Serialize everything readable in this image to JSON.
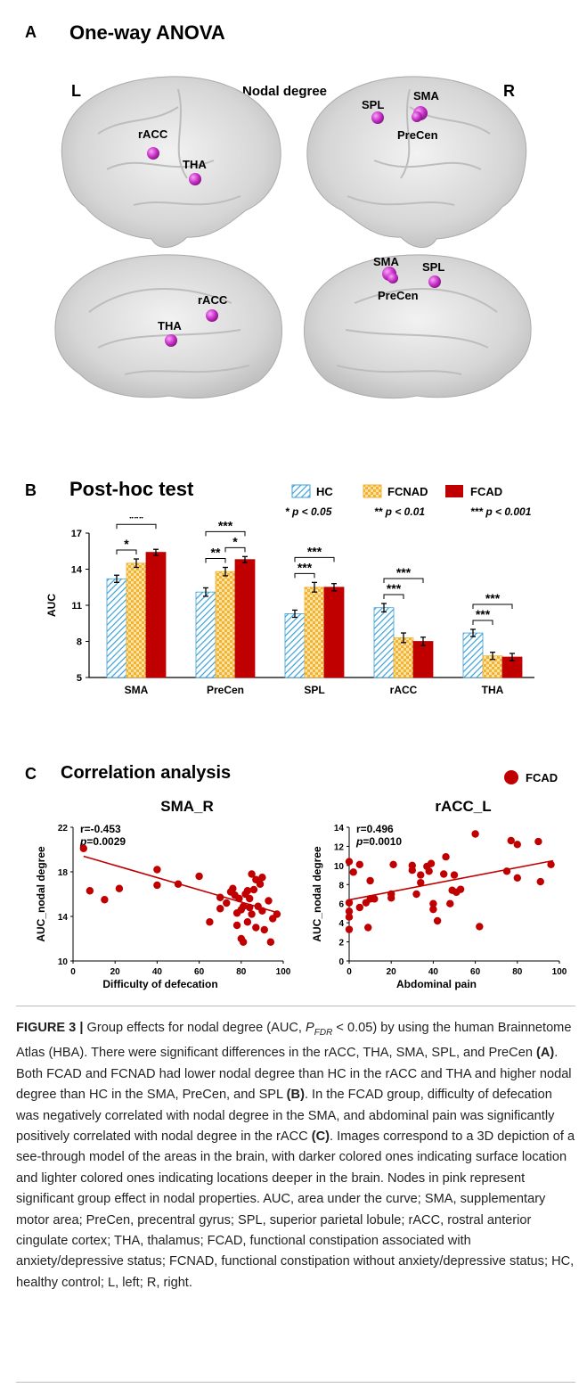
{
  "panelA": {
    "letter": "A",
    "title": "One-way ANOVA",
    "left_label": "L",
    "right_label": "R",
    "center_label": "Nodal degree",
    "brains": [
      {
        "view": "left-lateral",
        "nodes": [
          "rACC",
          "THA"
        ]
      },
      {
        "view": "right-lateral",
        "nodes": [
          "SPL",
          "SMA",
          "PreCen"
        ]
      },
      {
        "view": "left-medial",
        "nodes": [
          "rACC",
          "THA"
        ]
      },
      {
        "view": "right-medial",
        "nodes": [
          "SMA",
          "SPL",
          "PreCen"
        ]
      }
    ],
    "node_color": "#cc33cc"
  },
  "panelB": {
    "letter": "B",
    "title": "Post-hoc test",
    "legend": {
      "hc": "HC",
      "fcnad": "FCNAD",
      "fcad": "FCAD",
      "sig1": "* p < 0.05",
      "sig2": "** p < 0.01",
      "sig3": "*** p < 0.001"
    },
    "colors": {
      "hc": "#3aa0d8",
      "fcnad": "#f3b22f",
      "fcad": "#c00000"
    }
  },
  "panelC": {
    "letter": "C",
    "title": "Correlation analysis",
    "legend_label": "FCAD",
    "legend_color": "#c00000"
  },
  "caption": {
    "figure_label": "FIGURE 3 |",
    "text_1": " Group effects for nodal degree (AUC, ",
    "p_main": "P",
    "p_sub": "FDR",
    "text_2": " < 0.05) by using the human Brainnetome Atlas (HBA). There were significant differences in the rACC, THA, SMA, SPL, and PreCen ",
    "ref_a": "(A)",
    "text_3": ". Both FCAD and FCNAD had lower nodal degree than HC in the rACC and THA and higher nodal degree than HC in the SMA, PreCen, and SPL ",
    "ref_b": "(B)",
    "text_4": ". In the FCAD group, difficulty of defecation was negatively correlated with nodal degree in the SMA, and abdominal pain was significantly positively correlated with nodal degree in the rACC ",
    "ref_c": "(C)",
    "text_5": ". Images correspond to a 3D depiction of a see-through model of the areas in the brain, with darker colored ones indicating surface location and lighter colored ones indicating locations deeper in the brain. Nodes in pink represent significant group effect in nodal properties. AUC, area under the curve; SMA, supplementary motor area; PreCen, precentral gyrus; SPL, superior parietal lobule; rACC, rostral anterior cingulate cortex; THA, thalamus; FCAD, functional constipation associated with anxiety/depressive status; FCNAD, functional constipation without anxiety/depressive status; HC, healthy control; L, left; R, right."
  },
  "chart_data": [
    {
      "type": "bar",
      "ylabel": "AUC",
      "ylim": [
        5,
        17
      ],
      "yticks": [
        5,
        8,
        11,
        14,
        17
      ],
      "categories": [
        "SMA",
        "PreCen",
        "SPL",
        "rACC",
        "THA"
      ],
      "series": [
        {
          "name": "HC",
          "values": [
            13.2,
            12.1,
            10.3,
            10.8,
            8.7
          ],
          "errors": [
            0.3,
            0.35,
            0.3,
            0.35,
            0.3
          ]
        },
        {
          "name": "FCNAD",
          "values": [
            14.5,
            13.8,
            12.5,
            8.3,
            6.8
          ],
          "errors": [
            0.35,
            0.35,
            0.4,
            0.4,
            0.3
          ]
        },
        {
          "name": "FCAD",
          "values": [
            15.4,
            14.8,
            12.5,
            8.0,
            6.7
          ],
          "errors": [
            0.25,
            0.25,
            0.3,
            0.35,
            0.3
          ]
        }
      ],
      "significance": [
        {
          "category": "SMA",
          "pairs": [
            [
              "HC",
              "FCNAD",
              "*"
            ],
            [
              "HC",
              "FCAD",
              "***"
            ]
          ]
        },
        {
          "category": "PreCen",
          "pairs": [
            [
              "HC",
              "FCNAD",
              "**"
            ],
            [
              "FCNAD",
              "FCAD",
              "*"
            ],
            [
              "HC",
              "FCAD",
              "***"
            ]
          ]
        },
        {
          "category": "SPL",
          "pairs": [
            [
              "HC",
              "FCNAD",
              "***"
            ],
            [
              "HC",
              "FCAD",
              "***"
            ]
          ]
        },
        {
          "category": "rACC",
          "pairs": [
            [
              "HC",
              "FCNAD",
              "***"
            ],
            [
              "HC",
              "FCAD",
              "***"
            ]
          ]
        },
        {
          "category": "THA",
          "pairs": [
            [
              "HC",
              "FCNAD",
              "***"
            ],
            [
              "HC",
              "FCAD",
              "***"
            ]
          ]
        }
      ]
    },
    {
      "type": "scatter",
      "title": "SMA_R",
      "xlabel": "Difficulty of defecation",
      "ylabel": "AUC_nodal degree",
      "xlim": [
        0,
        100
      ],
      "ylim": [
        10,
        22
      ],
      "xticks": [
        0,
        20,
        40,
        60,
        80,
        100
      ],
      "yticks": [
        10,
        14,
        18,
        22
      ],
      "annotation_r": "r=-0.453",
      "annotation_p_label": "p",
      "annotation_p_value": "=0.0029",
      "fit": [
        [
          5,
          19.4
        ],
        [
          98,
          14.3
        ]
      ],
      "points": [
        [
          5,
          20.1
        ],
        [
          8,
          16.3
        ],
        [
          15,
          15.5
        ],
        [
          22,
          16.5
        ],
        [
          40,
          18.2
        ],
        [
          40,
          16.8
        ],
        [
          50,
          16.9
        ],
        [
          60,
          17.6
        ],
        [
          65,
          13.5
        ],
        [
          70,
          15.7
        ],
        [
          70,
          14.7
        ],
        [
          73,
          15.2
        ],
        [
          75,
          16.2
        ],
        [
          76,
          16.5
        ],
        [
          77,
          15.9
        ],
        [
          78,
          14.3
        ],
        [
          78,
          13.2
        ],
        [
          79,
          15.6
        ],
        [
          80,
          14.6
        ],
        [
          80,
          12.0
        ],
        [
          81,
          11.7
        ],
        [
          81,
          14.9
        ],
        [
          82,
          16.0
        ],
        [
          83,
          16.3
        ],
        [
          83,
          13.5
        ],
        [
          84,
          15.6
        ],
        [
          84,
          14.8
        ],
        [
          85,
          17.8
        ],
        [
          85,
          14.2
        ],
        [
          86,
          16.4
        ],
        [
          87,
          17.3
        ],
        [
          87,
          13.0
        ],
        [
          88,
          14.9
        ],
        [
          89,
          16.9
        ],
        [
          90,
          17.5
        ],
        [
          90,
          14.5
        ],
        [
          91,
          12.8
        ],
        [
          93,
          15.4
        ],
        [
          94,
          11.7
        ],
        [
          95,
          13.8
        ],
        [
          97,
          14.2
        ]
      ]
    },
    {
      "type": "scatter",
      "title": "rACC_L",
      "xlabel": "Abdominal pain",
      "ylabel": "AUC_nodal degree",
      "xlim": [
        0,
        100
      ],
      "ylim": [
        0,
        14
      ],
      "xticks": [
        0,
        20,
        40,
        60,
        80,
        100
      ],
      "yticks": [
        0,
        2,
        4,
        6,
        8,
        10,
        12,
        14
      ],
      "annotation_r": "r=0.496",
      "annotation_p_label": "p",
      "annotation_p_value": "=0.0010",
      "fit": [
        [
          0,
          6.4
        ],
        [
          97,
          10.5
        ]
      ],
      "points": [
        [
          0,
          10.4
        ],
        [
          0,
          6.1
        ],
        [
          0,
          5.2
        ],
        [
          0,
          4.6
        ],
        [
          0,
          3.3
        ],
        [
          2,
          9.3
        ],
        [
          5,
          10.1
        ],
        [
          5,
          5.6
        ],
        [
          8,
          6.1
        ],
        [
          9,
          3.5
        ],
        [
          10,
          8.4
        ],
        [
          10,
          6.5
        ],
        [
          12,
          6.5
        ],
        [
          20,
          7.0
        ],
        [
          20,
          6.6
        ],
        [
          21,
          10.1
        ],
        [
          30,
          9.5
        ],
        [
          30,
          10.0
        ],
        [
          32,
          7.0
        ],
        [
          34,
          9.0
        ],
        [
          34,
          8.2
        ],
        [
          37,
          9.9
        ],
        [
          38,
          9.4
        ],
        [
          39,
          10.2
        ],
        [
          40,
          6.0
        ],
        [
          40,
          5.4
        ],
        [
          42,
          4.2
        ],
        [
          45,
          9.1
        ],
        [
          46,
          10.9
        ],
        [
          48,
          6.0
        ],
        [
          49,
          7.4
        ],
        [
          50,
          9.0
        ],
        [
          51,
          7.2
        ],
        [
          53,
          7.5
        ],
        [
          60,
          13.3
        ],
        [
          62,
          3.6
        ],
        [
          75,
          9.4
        ],
        [
          77,
          12.6
        ],
        [
          80,
          12.2
        ],
        [
          80,
          8.7
        ],
        [
          90,
          12.5
        ],
        [
          91,
          8.3
        ],
        [
          96,
          10.1
        ]
      ]
    }
  ]
}
